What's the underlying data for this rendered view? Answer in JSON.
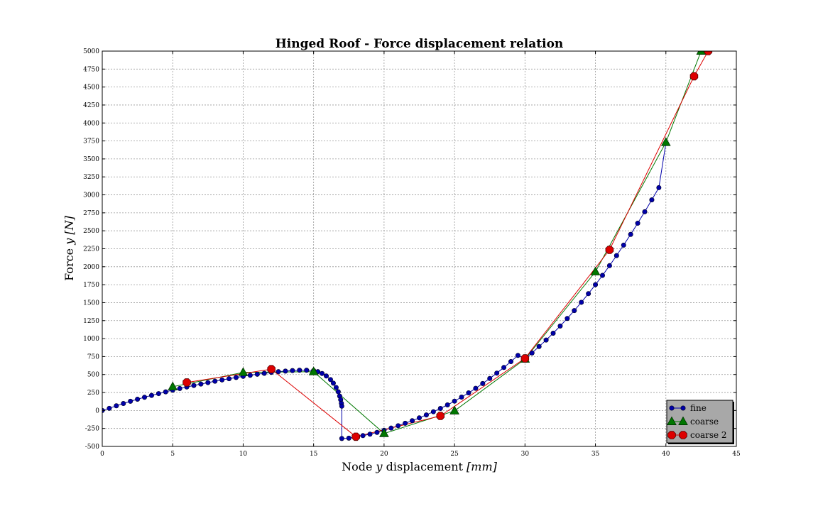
{
  "chart_data": {
    "type": "line",
    "title": "Hinged Roof - Force displacement relation",
    "xlabel": "Node y displacement [mm]",
    "ylabel": "Force y [N]",
    "xlim": [
      0,
      45
    ],
    "ylim": [
      -500,
      5000
    ],
    "xticks": [
      0,
      5,
      10,
      15,
      20,
      25,
      30,
      35,
      40,
      45
    ],
    "yticks": [
      -500,
      -250,
      0,
      250,
      500,
      750,
      1000,
      1250,
      1500,
      1750,
      2000,
      2250,
      2500,
      2750,
      3000,
      3250,
      3500,
      3750,
      4000,
      4250,
      4500,
      4750,
      5000
    ],
    "grid": true,
    "legend_position": "lower-right",
    "series": [
      {
        "name": "fine",
        "color": "#0000aa",
        "marker": "circle",
        "x": [
          0,
          0.5,
          1,
          1.5,
          2,
          2.5,
          3,
          3.5,
          4,
          4.5,
          5,
          5.5,
          6,
          6.5,
          7,
          7.5,
          8,
          8.5,
          9,
          9.5,
          10,
          10.5,
          11,
          11.5,
          12,
          12.5,
          13,
          13.5,
          14,
          14.5,
          15,
          15.3,
          15.6,
          15.9,
          16.2,
          16.4,
          16.6,
          16.75,
          16.85,
          16.92,
          16.97,
          17.0,
          17.0,
          17.5,
          18,
          18.5,
          19,
          19.5,
          20,
          20.5,
          21,
          21.5,
          22,
          22.5,
          23,
          23.5,
          24,
          24.5,
          25,
          25.5,
          26,
          26.5,
          27,
          27.5,
          28,
          28.5,
          29,
          29.5,
          30,
          30.5,
          31,
          31.5,
          32,
          32.5,
          33,
          33.5,
          34,
          34.5,
          35,
          35.5,
          36,
          36.5,
          37,
          37.5,
          38,
          38.5,
          39,
          39.5,
          40
        ],
        "y": [
          0,
          30,
          65,
          97,
          128,
          157,
          184,
          210,
          235,
          259,
          283,
          306,
          327,
          348,
          368,
          388,
          407,
          425,
          442,
          459,
          475,
          490,
          504,
          517,
          530,
          540,
          548,
          555,
          560,
          560,
          555,
          540,
          515,
          480,
          430,
          380,
          320,
          260,
          200,
          150,
          100,
          60,
          -390,
          -385,
          -370,
          -350,
          -330,
          -305,
          -275,
          -245,
          -212,
          -178,
          -142,
          -103,
          -62,
          -18,
          28,
          78,
          130,
          186,
          245,
          308,
          375,
          445,
          520,
          598,
          680,
          766,
          720,
          800,
          890,
          980,
          1075,
          1175,
          1280,
          1390,
          1505,
          1625,
          1750,
          1880,
          2015,
          2155,
          2300,
          2450,
          2605,
          2765,
          2930,
          3100,
          3720
        ]
      },
      {
        "name": "coarse",
        "color": "#007700",
        "marker": "triangle",
        "x": [
          5,
          10,
          15,
          20,
          25,
          30,
          35,
          40,
          42.5
        ],
        "y": [
          330,
          530,
          540,
          -320,
          -5,
          715,
          1930,
          3730,
          5000
        ]
      },
      {
        "name": "coarse 2",
        "color": "#dd0000",
        "marker": "octagon",
        "x": [
          6,
          12,
          18,
          24,
          30,
          36,
          42,
          43
        ],
        "y": [
          390,
          575,
          -365,
          -75,
          725,
          2235,
          4650,
          5000
        ]
      }
    ]
  }
}
